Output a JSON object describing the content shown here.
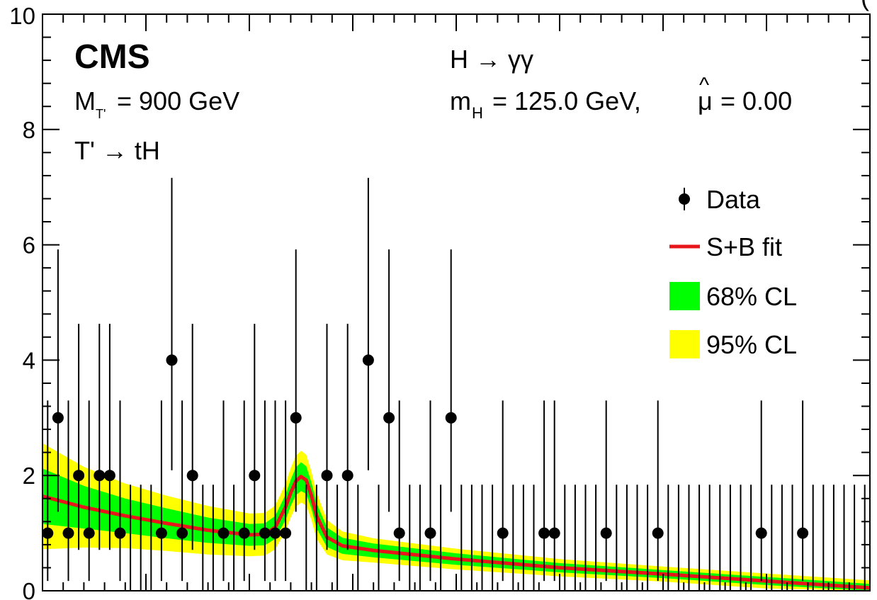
{
  "chart_data": {
    "type": "scatter",
    "title": "",
    "xlabel": "",
    "ylabel": "",
    "ylim": [
      0,
      10
    ],
    "x_domain": [
      100,
      180
    ],
    "yticks": [
      "0",
      "2",
      "4",
      "6",
      "8",
      "10"
    ],
    "experiment": "CMS",
    "mass_label": "M",
    "mass_sub": "T'",
    "mass_value": "= 900 GeV",
    "decay_label": "T' → tH",
    "channel_label": "H → γγ",
    "mh_label": "m",
    "mh_sub": "H",
    "mh_value": "= 125.0 GeV,",
    "mu_symbol": "μ",
    "mu_hat": "^",
    "mu_value": "= 0.00",
    "top_right_fragment": "(",
    "legend": {
      "placement": "right",
      "items": [
        {
          "label": "Data",
          "kind": "marker"
        },
        {
          "label": "S+B fit",
          "kind": "line"
        },
        {
          "label": "68% CL",
          "kind": "box"
        },
        {
          "label": "95% CL",
          "kind": "box"
        }
      ]
    },
    "colors": {
      "data": "#000000",
      "fit": "#e8161a",
      "band68": "#00ff00",
      "band95": "#ffff00"
    },
    "data_points": [
      {
        "x": 100.5,
        "y": 1
      },
      {
        "x": 101.5,
        "y": 3
      },
      {
        "x": 102.5,
        "y": 1
      },
      {
        "x": 103.5,
        "y": 2
      },
      {
        "x": 104.5,
        "y": 1
      },
      {
        "x": 105.5,
        "y": 2
      },
      {
        "x": 106.5,
        "y": 2
      },
      {
        "x": 107.5,
        "y": 1
      },
      {
        "x": 108.5,
        "y": 0
      },
      {
        "x": 109.5,
        "y": 0
      },
      {
        "x": 110.5,
        "y": 0
      },
      {
        "x": 111.5,
        "y": 1
      },
      {
        "x": 112.5,
        "y": 4
      },
      {
        "x": 113.5,
        "y": 1
      },
      {
        "x": 114.5,
        "y": 2
      },
      {
        "x": 115.5,
        "y": 0
      },
      {
        "x": 116.5,
        "y": 0
      },
      {
        "x": 117.5,
        "y": 1
      },
      {
        "x": 118.5,
        "y": 0
      },
      {
        "x": 119.5,
        "y": 1
      },
      {
        "x": 120.5,
        "y": 2
      },
      {
        "x": 121.5,
        "y": 1
      },
      {
        "x": 122.5,
        "y": 1
      },
      {
        "x": 123.5,
        "y": 1
      },
      {
        "x": 124.5,
        "y": 3
      },
      {
        "x": 125.5,
        "y": 0
      },
      {
        "x": 126.5,
        "y": 0
      },
      {
        "x": 127.5,
        "y": 2
      },
      {
        "x": 128.5,
        "y": 0
      },
      {
        "x": 129.5,
        "y": 2
      },
      {
        "x": 130.5,
        "y": 0
      },
      {
        "x": 131.5,
        "y": 4
      },
      {
        "x": 132.5,
        "y": 0
      },
      {
        "x": 133.5,
        "y": 3
      },
      {
        "x": 134.5,
        "y": 1
      },
      {
        "x": 135.5,
        "y": 0
      },
      {
        "x": 136.5,
        "y": 0
      },
      {
        "x": 137.5,
        "y": 1
      },
      {
        "x": 138.5,
        "y": 0
      },
      {
        "x": 139.5,
        "y": 3
      },
      {
        "x": 140.5,
        "y": 0
      },
      {
        "x": 141.5,
        "y": 0
      },
      {
        "x": 142.5,
        "y": 0
      },
      {
        "x": 143.5,
        "y": 0
      },
      {
        "x": 144.5,
        "y": 1
      },
      {
        "x": 145.5,
        "y": 0
      },
      {
        "x": 146.5,
        "y": 0
      },
      {
        "x": 147.5,
        "y": 0
      },
      {
        "x": 148.5,
        "y": 1
      },
      {
        "x": 149.5,
        "y": 1
      },
      {
        "x": 150.5,
        "y": 0
      },
      {
        "x": 151.5,
        "y": 0
      },
      {
        "x": 152.5,
        "y": 0
      },
      {
        "x": 153.5,
        "y": 0
      },
      {
        "x": 154.5,
        "y": 1
      },
      {
        "x": 155.5,
        "y": 0
      },
      {
        "x": 156.5,
        "y": 0
      },
      {
        "x": 157.5,
        "y": 0
      },
      {
        "x": 158.5,
        "y": 0
      },
      {
        "x": 159.5,
        "y": 1
      },
      {
        "x": 160.5,
        "y": 0
      },
      {
        "x": 161.5,
        "y": 0
      },
      {
        "x": 162.5,
        "y": 0
      },
      {
        "x": 163.5,
        "y": 0
      },
      {
        "x": 164.5,
        "y": 0
      },
      {
        "x": 165.5,
        "y": 0
      },
      {
        "x": 166.5,
        "y": 0
      },
      {
        "x": 167.5,
        "y": 0
      },
      {
        "x": 168.5,
        "y": 0
      },
      {
        "x": 169.5,
        "y": 1
      },
      {
        "x": 170.5,
        "y": 0
      },
      {
        "x": 171.5,
        "y": 0
      },
      {
        "x": 172.5,
        "y": 0
      },
      {
        "x": 173.5,
        "y": 1
      },
      {
        "x": 174.5,
        "y": 0
      },
      {
        "x": 175.5,
        "y": 0
      },
      {
        "x": 176.5,
        "y": 0
      },
      {
        "x": 177.5,
        "y": 0
      },
      {
        "x": 178.5,
        "y": 0
      },
      {
        "x": 179.5,
        "y": 0
      }
    ],
    "series": [
      {
        "name": "S+B fit",
        "x": [
          100,
          104,
          108,
          112,
          116,
          120,
          121.5,
          122.5,
          123.5,
          124,
          124.5,
          125,
          125.5,
          126,
          126.5,
          127.5,
          129,
          132,
          140,
          150,
          160,
          170,
          180
        ],
        "y": [
          1.64,
          1.45,
          1.3,
          1.17,
          1.05,
          0.97,
          0.98,
          1.1,
          1.45,
          1.7,
          1.9,
          1.98,
          1.92,
          1.65,
          1.3,
          0.93,
          0.78,
          0.7,
          0.55,
          0.4,
          0.29,
          0.17,
          0.05
        ],
        "band68": [
          0.48,
          0.37,
          0.3,
          0.26,
          0.22,
          0.19,
          0.19,
          0.2,
          0.22,
          0.23,
          0.24,
          0.25,
          0.24,
          0.23,
          0.22,
          0.17,
          0.14,
          0.12,
          0.1,
          0.08,
          0.07,
          0.07,
          0.07
        ],
        "band95": [
          0.92,
          0.7,
          0.56,
          0.48,
          0.42,
          0.37,
          0.37,
          0.38,
          0.41,
          0.43,
          0.44,
          0.45,
          0.44,
          0.42,
          0.4,
          0.3,
          0.25,
          0.21,
          0.18,
          0.15,
          0.13,
          0.13,
          0.13
        ]
      }
    ]
  }
}
